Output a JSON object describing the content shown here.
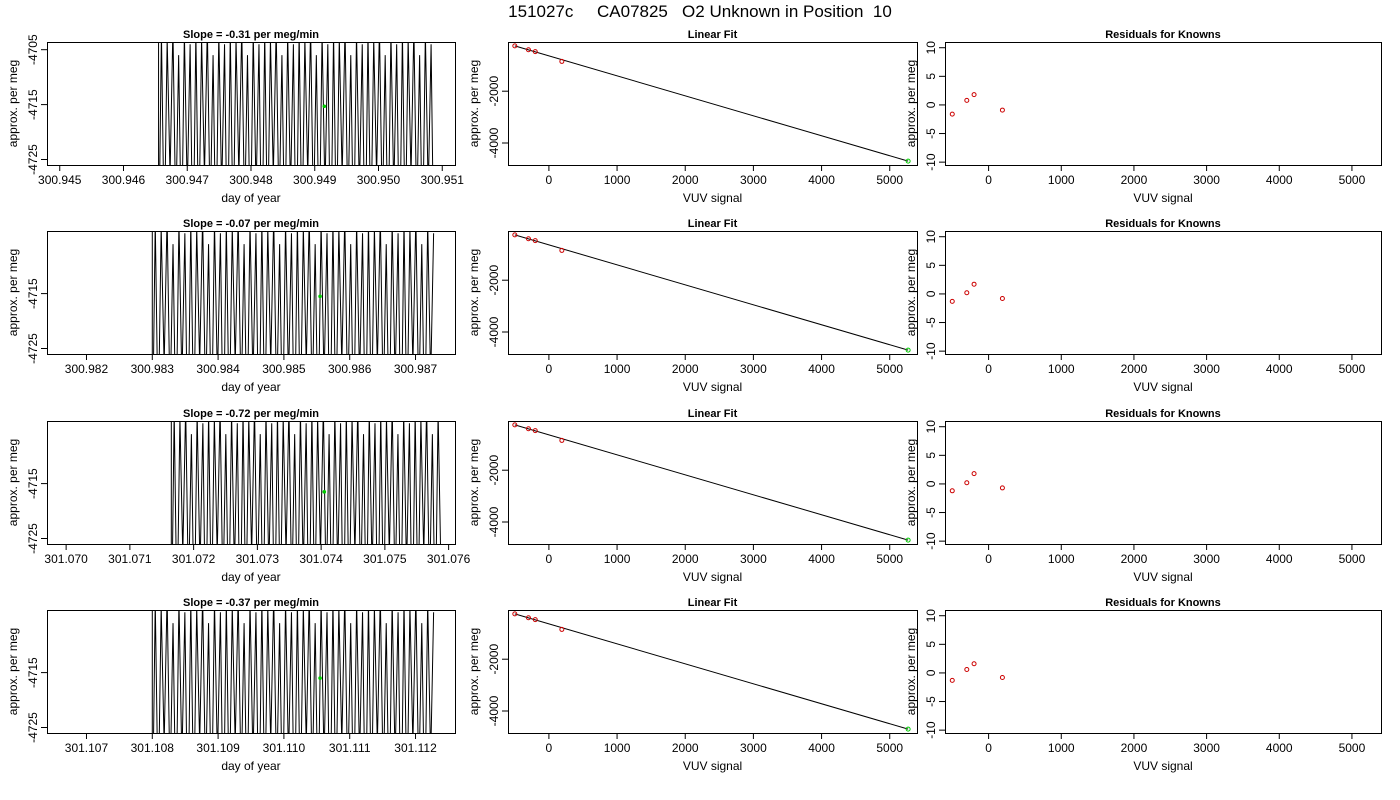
{
  "title": "151027c     CA07825   O2 Unknown in Position  10",
  "colors": {
    "line": "#000000",
    "known": "#cc0000",
    "unknown": "#00cc00"
  },
  "chart_data": [
    {
      "type": "line",
      "title": "Slope =  -0.31  per meg/min",
      "xlabel": "day of year",
      "ylabel": "approx. per meg",
      "xlim": [
        300.9448,
        300.9512
      ],
      "ylim": [
        -4726,
        -4703.6
      ],
      "xticks": [
        "300.945",
        "300.946",
        "300.947",
        "300.948",
        "300.949",
        "300.950",
        "300.951"
      ],
      "yticks": [
        "-4705",
        "-4715",
        "-4725"
      ],
      "ytick_values": [
        -4705,
        -4715,
        -4725
      ],
      "trace": {
        "start": 300.94655,
        "end": 300.9509,
        "center": -4715,
        "amplitude": 11,
        "period": 9e-05
      },
      "unknown_point": {
        "x": 300.94915,
        "y": -4715.3
      }
    },
    {
      "type": "scatter",
      "title": "Linear Fit",
      "xlabel": "VUV signal",
      "ylabel": "approx. per meg",
      "xlim": [
        -600,
        5400
      ],
      "ylim": [
        -4850,
        -100
      ],
      "xticks": [
        "0",
        "1000",
        "2000",
        "3000",
        "4000",
        "5000"
      ],
      "xtick_values": [
        0,
        1000,
        2000,
        3000,
        4000,
        5000
      ],
      "yticks": [
        "-2000",
        "-4000"
      ],
      "ytick_values": [
        -2000,
        -4000
      ],
      "knowns": [
        [
          -500,
          -250
        ],
        [
          -300,
          -400
        ],
        [
          -200,
          -470
        ],
        [
          190,
          -850
        ]
      ],
      "fit_line": [
        [
          -500,
          -250
        ],
        [
          5270,
          -4700
        ]
      ],
      "unknown_point": {
        "x": 5270,
        "y": -4700
      }
    },
    {
      "type": "scatter",
      "title": "Residuals for Knowns",
      "xlabel": "VUV signal",
      "ylabel": "approx. per meg",
      "xlim": [
        -600,
        5400
      ],
      "ylim": [
        -10.5,
        11
      ],
      "xticks": [
        "0",
        "1000",
        "2000",
        "3000",
        "4000",
        "5000"
      ],
      "xtick_values": [
        0,
        1000,
        2000,
        3000,
        4000,
        5000
      ],
      "yticks": [
        "-10",
        "-5",
        "0",
        "5",
        "10"
      ],
      "ytick_values": [
        -10,
        -5,
        0,
        5,
        10
      ],
      "points": [
        [
          -500,
          -1.6
        ],
        [
          -300,
          0.8
        ],
        [
          -200,
          1.8
        ],
        [
          190,
          -0.9
        ]
      ]
    },
    {
      "type": "line",
      "title": "Slope =  -0.07  per meg/min",
      "xlabel": "day of year",
      "ylabel": "approx. per meg",
      "xlim": [
        300.9814,
        300.9876
      ],
      "ylim": [
        -4726,
        -4703.6
      ],
      "xticks": [
        "300.982",
        "300.983",
        "300.984",
        "300.985",
        "300.986",
        "300.987"
      ],
      "yticks": [
        "-4715",
        "-4725"
      ],
      "ytick_values": [
        -4715,
        -4725
      ],
      "trace": {
        "start": 300.983,
        "end": 300.9873,
        "center": -4715,
        "amplitude": 11,
        "period": 9e-05
      },
      "unknown_point": {
        "x": 300.98555,
        "y": -4715.5
      }
    },
    {
      "type": "scatter",
      "title": "Linear Fit",
      "xlabel": "VUV signal",
      "ylabel": "approx. per meg",
      "xlim": [
        -600,
        5400
      ],
      "ylim": [
        -4850,
        -100
      ],
      "xticks": [
        "0",
        "1000",
        "2000",
        "3000",
        "4000",
        "5000"
      ],
      "xtick_values": [
        0,
        1000,
        2000,
        3000,
        4000,
        5000
      ],
      "yticks": [
        "-2000",
        "-4000"
      ],
      "ytick_values": [
        -2000,
        -4000
      ],
      "knowns": [
        [
          -500,
          -250
        ],
        [
          -300,
          -400
        ],
        [
          -200,
          -470
        ],
        [
          190,
          -850
        ]
      ],
      "fit_line": [
        [
          -500,
          -250
        ],
        [
          5270,
          -4700
        ]
      ],
      "unknown_point": {
        "x": 5270,
        "y": -4700
      }
    },
    {
      "type": "scatter",
      "title": "Residuals for Knowns",
      "xlabel": "VUV signal",
      "ylabel": "approx. per meg",
      "xlim": [
        -600,
        5400
      ],
      "ylim": [
        -10.5,
        11
      ],
      "xticks": [
        "0",
        "1000",
        "2000",
        "3000",
        "4000",
        "5000"
      ],
      "xtick_values": [
        0,
        1000,
        2000,
        3000,
        4000,
        5000
      ],
      "yticks": [
        "-10",
        "-5",
        "0",
        "5",
        "10"
      ],
      "ytick_values": [
        -10,
        -5,
        0,
        5,
        10
      ],
      "points": [
        [
          -500,
          -1.3
        ],
        [
          -300,
          0.2
        ],
        [
          -200,
          1.7
        ],
        [
          190,
          -0.8
        ]
      ]
    },
    {
      "type": "line",
      "title": "Slope =  -0.72  per meg/min",
      "xlabel": "day of year",
      "ylabel": "approx. per meg",
      "xlim": [
        301.0697,
        301.0761
      ],
      "ylim": [
        -4726,
        -4703.6
      ],
      "xticks": [
        "301.070",
        "301.071",
        "301.072",
        "301.073",
        "301.074",
        "301.075",
        "301.076"
      ],
      "yticks": [
        "-4715",
        "-4725"
      ],
      "ytick_values": [
        -4715,
        -4725
      ],
      "trace": {
        "start": 301.07165,
        "end": 301.0759,
        "center": -4715,
        "amplitude": 11,
        "period": 9e-05
      },
      "unknown_point": {
        "x": 301.07405,
        "y": -4716.5
      }
    },
    {
      "type": "scatter",
      "title": "Linear Fit",
      "xlabel": "VUV signal",
      "ylabel": "approx. per meg",
      "xlim": [
        -600,
        5400
      ],
      "ylim": [
        -4850,
        -100
      ],
      "xticks": [
        "0",
        "1000",
        "2000",
        "3000",
        "4000",
        "5000"
      ],
      "xtick_values": [
        0,
        1000,
        2000,
        3000,
        4000,
        5000
      ],
      "yticks": [
        "-2000",
        "-4000"
      ],
      "ytick_values": [
        -2000,
        -4000
      ],
      "knowns": [
        [
          -500,
          -250
        ],
        [
          -300,
          -400
        ],
        [
          -200,
          -470
        ],
        [
          190,
          -850
        ]
      ],
      "fit_line": [
        [
          -500,
          -250
        ],
        [
          5270,
          -4700
        ]
      ],
      "unknown_point": {
        "x": 5270,
        "y": -4700
      }
    },
    {
      "type": "scatter",
      "title": "Residuals for Knowns",
      "xlabel": "VUV signal",
      "ylabel": "approx. per meg",
      "xlim": [
        -600,
        5400
      ],
      "ylim": [
        -10.5,
        11
      ],
      "xticks": [
        "0",
        "1000",
        "2000",
        "3000",
        "4000",
        "5000"
      ],
      "xtick_values": [
        0,
        1000,
        2000,
        3000,
        4000,
        5000
      ],
      "yticks": [
        "-10",
        "-5",
        "0",
        "5",
        "10"
      ],
      "ytick_values": [
        -10,
        -5,
        0,
        5,
        10
      ],
      "points": [
        [
          -500,
          -1.2
        ],
        [
          -300,
          0.2
        ],
        [
          -200,
          1.8
        ],
        [
          190,
          -0.7
        ]
      ]
    },
    {
      "type": "line",
      "title": "Slope =  -0.37  per meg/min",
      "xlabel": "day of year",
      "ylabel": "approx. per meg",
      "xlim": [
        301.1064,
        301.1126
      ],
      "ylim": [
        -4726,
        -4703.6
      ],
      "xticks": [
        "301.107",
        "301.108",
        "301.109",
        "301.110",
        "301.111",
        "301.112"
      ],
      "yticks": [
        "-4715",
        "-4725"
      ],
      "ytick_values": [
        -4715,
        -4725
      ],
      "trace": {
        "start": 301.108,
        "end": 301.1123,
        "center": -4715,
        "amplitude": 11,
        "period": 9e-05
      },
      "unknown_point": {
        "x": 301.11055,
        "y": -4716
      }
    },
    {
      "type": "scatter",
      "title": "Linear Fit",
      "xlabel": "VUV signal",
      "ylabel": "approx. per meg",
      "xlim": [
        -600,
        5400
      ],
      "ylim": [
        -4850,
        -100
      ],
      "xticks": [
        "0",
        "1000",
        "2000",
        "3000",
        "4000",
        "5000"
      ],
      "xtick_values": [
        0,
        1000,
        2000,
        3000,
        4000,
        5000
      ],
      "yticks": [
        "-2000",
        "-4000"
      ],
      "ytick_values": [
        -2000,
        -4000
      ],
      "knowns": [
        [
          -500,
          -250
        ],
        [
          -300,
          -400
        ],
        [
          -200,
          -470
        ],
        [
          190,
          -850
        ]
      ],
      "fit_line": [
        [
          -500,
          -250
        ],
        [
          5270,
          -4700
        ]
      ],
      "unknown_point": {
        "x": 5270,
        "y": -4700
      }
    },
    {
      "type": "scatter",
      "title": "Residuals for Knowns",
      "xlabel": "VUV signal",
      "ylabel": "approx. per meg",
      "xlim": [
        -600,
        5400
      ],
      "ylim": [
        -10.5,
        11
      ],
      "xticks": [
        "0",
        "1000",
        "2000",
        "3000",
        "4000",
        "5000"
      ],
      "xtick_values": [
        0,
        1000,
        2000,
        3000,
        4000,
        5000
      ],
      "yticks": [
        "-10",
        "-5",
        "0",
        "5",
        "10"
      ],
      "ytick_values": [
        -10,
        -5,
        0,
        5,
        10
      ],
      "points": [
        [
          -500,
          -1.3
        ],
        [
          -300,
          0.6
        ],
        [
          -200,
          1.6
        ],
        [
          190,
          -0.8
        ]
      ]
    }
  ]
}
